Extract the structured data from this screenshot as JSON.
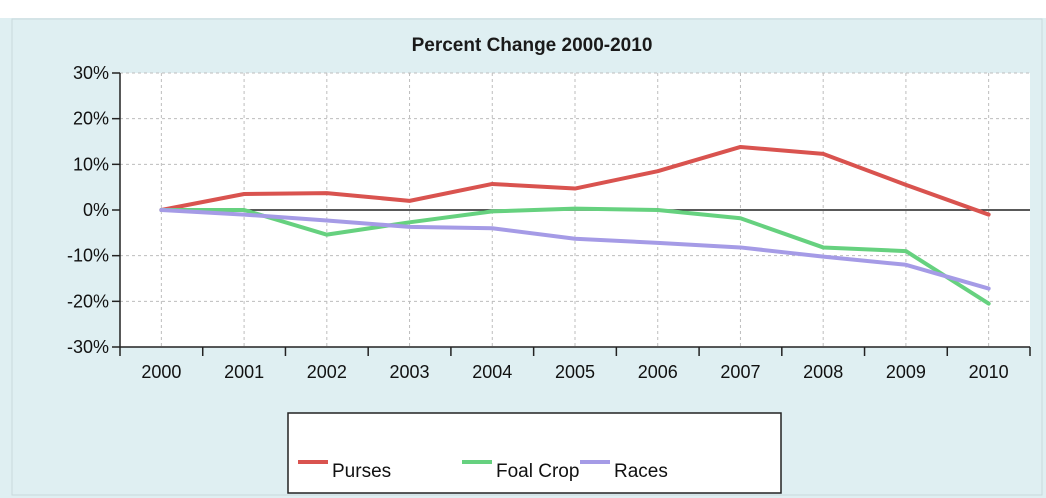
{
  "chart_data": {
    "type": "line",
    "title": "Percent Change 2000-2010",
    "categories": [
      "2000",
      "2001",
      "2002",
      "2003",
      "2004",
      "2005",
      "2006",
      "2007",
      "2008",
      "2009",
      "2010"
    ],
    "ylim": [
      -30,
      30
    ],
    "yticks": [
      30,
      20,
      10,
      0,
      -10,
      -20,
      -30
    ],
    "ytick_labels": [
      "30%",
      "20%",
      "10%",
      "0%",
      "-10%",
      "-20%",
      "-30%"
    ],
    "grid": true,
    "legend_position": "bottom",
    "series": [
      {
        "name": "Purses",
        "color": "#d9534f",
        "values": [
          0,
          3.5,
          3.7,
          2.0,
          5.7,
          4.7,
          8.5,
          13.8,
          12.3,
          5.5,
          -1.0
        ]
      },
      {
        "name": "Foal Crop",
        "color": "#66d17f",
        "values": [
          0,
          0,
          -5.4,
          -2.7,
          -0.3,
          0.3,
          0,
          -1.8,
          -8.2,
          -9.0,
          -20.5
        ]
      },
      {
        "name": "Races",
        "color": "#a59be6",
        "values": [
          0,
          -1.0,
          -2.3,
          -3.7,
          -4.0,
          -6.3,
          -7.2,
          -8.2,
          -10.2,
          -12.0,
          -17.2
        ]
      }
    ]
  }
}
